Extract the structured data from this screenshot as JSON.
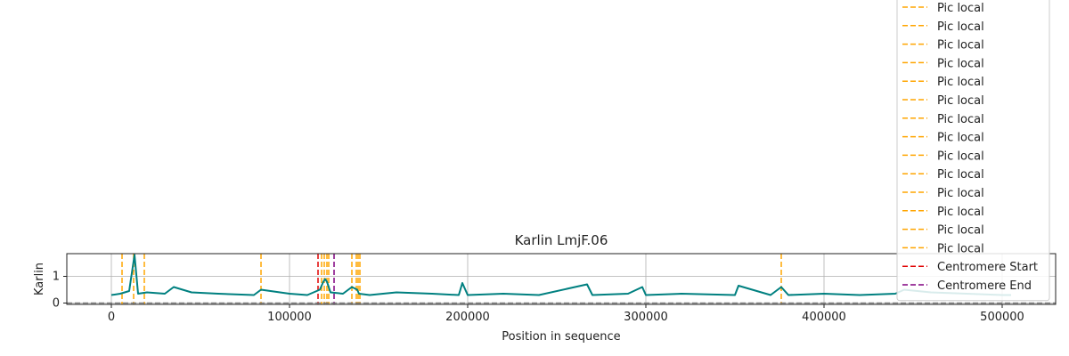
{
  "chart_data": {
    "type": "line",
    "title": "Karlin LmjF.06",
    "xlabel": "Position in sequence",
    "ylabel": "Karlin",
    "xlim": [
      -25000,
      530000
    ],
    "ylim": [
      -0.05,
      1.85
    ],
    "xticks": [
      0,
      100000,
      200000,
      300000,
      400000,
      500000
    ],
    "xtick_labels": [
      "0",
      "100000",
      "200000",
      "300000",
      "400000",
      "500000"
    ],
    "yticks": [
      0,
      1
    ],
    "ytick_labels": [
      "0",
      "1"
    ],
    "grid": true,
    "legend_position": "top-right",
    "series": [
      {
        "color": "#008080",
        "x": [
          0,
          5000,
          10000,
          13000,
          15000,
          20000,
          30000,
          35000,
          45000,
          60000,
          80000,
          84000,
          100000,
          110000,
          117000,
          119000,
          120000,
          121000,
          123000,
          130000,
          135000,
          138000,
          139000,
          145000,
          160000,
          180000,
          195000,
          197000,
          200000,
          220000,
          240000,
          267000,
          270000,
          290000,
          298000,
          300000,
          320000,
          350000,
          352000,
          370000,
          376000,
          380000,
          400000,
          420000,
          440000,
          445000,
          460000,
          480000,
          500000,
          505000
        ],
        "y": [
          0.3,
          0.35,
          0.45,
          1.8,
          0.35,
          0.4,
          0.35,
          0.6,
          0.4,
          0.35,
          0.3,
          0.5,
          0.35,
          0.3,
          0.5,
          0.8,
          0.9,
          0.8,
          0.4,
          0.35,
          0.6,
          0.5,
          0.35,
          0.3,
          0.4,
          0.35,
          0.3,
          0.75,
          0.3,
          0.35,
          0.3,
          0.7,
          0.3,
          0.35,
          0.6,
          0.3,
          0.35,
          0.3,
          0.65,
          0.3,
          0.6,
          0.3,
          0.35,
          0.3,
          0.35,
          0.5,
          0.4,
          0.35,
          0.3,
          0.3
        ]
      }
    ],
    "vlines": [
      {
        "x": 6000,
        "color": "#ffa500",
        "legend": "Pic local"
      },
      {
        "x": 12500,
        "color": "#ffa500",
        "legend": "Pic local"
      },
      {
        "x": 18500,
        "color": "#ffa500",
        "legend": "Pic local"
      },
      {
        "x": 84000,
        "color": "#ffa500",
        "legend": "Pic local"
      },
      {
        "x": 118000,
        "color": "#ffa500",
        "legend": "Pic local"
      },
      {
        "x": 119500,
        "color": "#ffa500",
        "legend": "Pic local"
      },
      {
        "x": 121000,
        "color": "#ffa500",
        "legend": "Pic local"
      },
      {
        "x": 122000,
        "color": "#ffa500",
        "legend": "Pic local"
      },
      {
        "x": 135000,
        "color": "#ffa500",
        "legend": "Pic local"
      },
      {
        "x": 137500,
        "color": "#ffa500",
        "legend": "Pic local"
      },
      {
        "x": 138500,
        "color": "#ffa500",
        "legend": "Pic local"
      },
      {
        "x": 139500,
        "color": "#ffa500",
        "legend": "Pic local"
      },
      {
        "x": 376000,
        "color": "#ffa500",
        "legend": "Pic local"
      },
      {
        "x": 116000,
        "color": "#e00000",
        "legend": "Centromere Start"
      },
      {
        "x": 125000,
        "color": "#800080",
        "legend": "Centromere End"
      }
    ],
    "hline": {
      "y": 0,
      "color": "#808080"
    },
    "legend": [
      {
        "label": "Pic local",
        "color": "#ffa500"
      },
      {
        "label": "Pic local",
        "color": "#ffa500"
      },
      {
        "label": "Pic local",
        "color": "#ffa500"
      },
      {
        "label": "Pic local",
        "color": "#ffa500"
      },
      {
        "label": "Pic local",
        "color": "#ffa500"
      },
      {
        "label": "Pic local",
        "color": "#ffa500"
      },
      {
        "label": "Pic local",
        "color": "#ffa500"
      },
      {
        "label": "Pic local",
        "color": "#ffa500"
      },
      {
        "label": "Pic local",
        "color": "#ffa500"
      },
      {
        "label": "Pic local",
        "color": "#ffa500"
      },
      {
        "label": "Pic local",
        "color": "#ffa500"
      },
      {
        "label": "Pic local",
        "color": "#ffa500"
      },
      {
        "label": "Pic local",
        "color": "#ffa500"
      },
      {
        "label": "Pic local",
        "color": "#ffa500"
      },
      {
        "label": "Centromere Start",
        "color": "#e00000"
      },
      {
        "label": "Centromere End",
        "color": "#800080"
      }
    ]
  }
}
